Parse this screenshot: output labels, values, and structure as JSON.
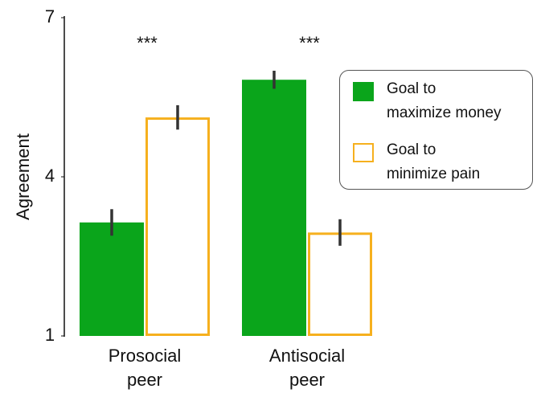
{
  "chart_data": {
    "type": "bar",
    "y_label": "Agreement",
    "categories": [
      "Prosocial\npeer",
      "Antisocial\npeer"
    ],
    "series": [
      {
        "name": "Goal to\nmaximize money",
        "color": "#0aa51b",
        "fill": true,
        "values": [
          3.14,
          5.83
        ],
        "errors": [
          0.25,
          0.17
        ]
      },
      {
        "name": "Goal to\nminimize pain",
        "color": "#f6b01e",
        "fill": false,
        "values": [
          5.12,
          2.95
        ],
        "errors": [
          0.23,
          0.25
        ]
      }
    ],
    "annotations": [
      "***",
      "***"
    ],
    "ylim": [
      1,
      7
    ],
    "yticks": [
      1,
      4,
      7
    ],
    "grid": false,
    "legend": "upper right"
  }
}
